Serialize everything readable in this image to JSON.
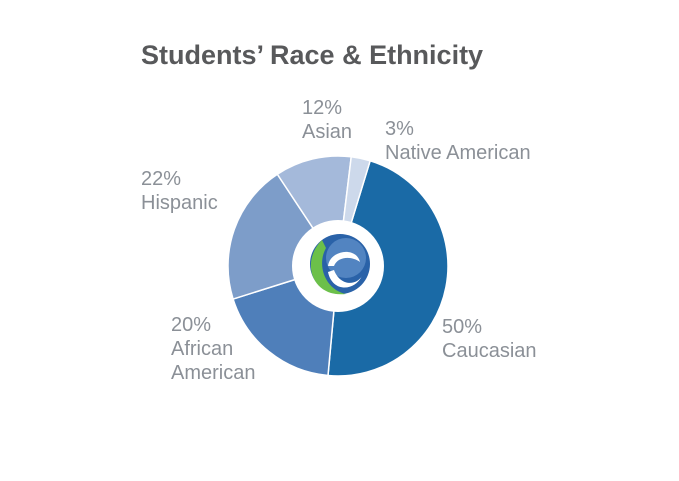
{
  "chart_data": {
    "type": "pie",
    "title": "Students’ Race & Ethnicity",
    "categories": [
      "Caucasian",
      "African American",
      "Hispanic",
      "Asian",
      "Native American"
    ],
    "values": [
      50,
      20,
      22,
      12,
      3
    ],
    "value_labels": [
      "50%",
      "20%",
      "22%",
      "12%",
      "3%"
    ],
    "colors": [
      "#1a6aa6",
      "#4f7fba",
      "#7d9dc9",
      "#a4b9da",
      "#cdd9eb"
    ]
  }
}
